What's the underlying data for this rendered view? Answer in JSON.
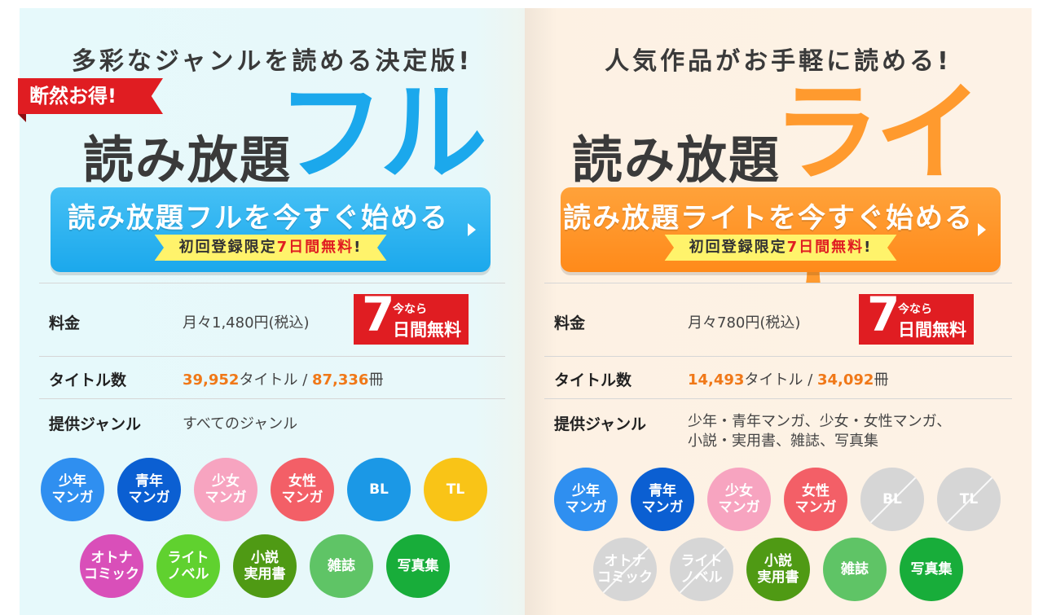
{
  "colors": {
    "accent_red": "#e01d22",
    "full_blue": "#1ba8ec",
    "lite_orange": "#ff8a1a",
    "number_orange": "#f07818",
    "cta_sub_yellow": "#fff36b"
  },
  "full": {
    "tagline": "多彩なジャンルを読める決定版!",
    "badge": "断然お得!",
    "title_main": "読み放題",
    "title_accent": "フル",
    "cta": {
      "label": "読み放題フルを今すぐ始める",
      "sub_prefix": "初回登録限定",
      "sub_highlight": "7日間無料",
      "sub_suffix": "!",
      "arrow_icon": "triangle-right-icon"
    },
    "price": {
      "label": "料金",
      "value": "月々1,480円(税込)",
      "free_badge": {
        "big": "7",
        "small1": "今なら",
        "small2": "日間無料"
      }
    },
    "titles": {
      "label": "タイトル数",
      "count": "39,952",
      "count_unit": "タイトル / ",
      "volumes": "87,336",
      "volumes_unit": "冊"
    },
    "genres": {
      "label": "提供ジャンル",
      "value": "すべてのジャンル"
    },
    "genre_circles": [
      {
        "l1": "少年",
        "l2": "マンガ",
        "color": "#2f8ff0",
        "available": true
      },
      {
        "l1": "青年",
        "l2": "マンガ",
        "color": "#0b5fd2",
        "available": true
      },
      {
        "l1": "少女",
        "l2": "マンガ",
        "color": "#f7a4c0",
        "available": true
      },
      {
        "l1": "女性",
        "l2": "マンガ",
        "color": "#f35f67",
        "available": true
      },
      {
        "l1": "BL",
        "l2": "",
        "color": "#1b98e6",
        "available": true
      },
      {
        "l1": "TL",
        "l2": "",
        "color": "#f9c417",
        "available": true
      },
      {
        "l1": "オトナ",
        "l2": "コミック",
        "color": "#d94fb9",
        "available": true
      },
      {
        "l1": "ライト",
        "l2": "ノベル",
        "color": "#60d12f",
        "available": true
      },
      {
        "l1": "小説",
        "l2": "実用書",
        "color": "#4f9a14",
        "available": true
      },
      {
        "l1": "雑誌",
        "l2": "",
        "color": "#5fc466",
        "available": true
      },
      {
        "l1": "写真集",
        "l2": "",
        "color": "#18ad3a",
        "available": true
      }
    ]
  },
  "lite": {
    "tagline": "人気作品がお手軽に読める!",
    "title_main": "読み放題",
    "title_accent": "ライト",
    "cta": {
      "label": "読み放題ライトを今すぐ始める",
      "sub_prefix": "初回登録限定",
      "sub_highlight": "7日間無料",
      "sub_suffix": "!",
      "arrow_icon": "triangle-right-icon"
    },
    "price": {
      "label": "料金",
      "value": "月々780円(税込)",
      "free_badge": {
        "big": "7",
        "small1": "今なら",
        "small2": "日間無料"
      }
    },
    "titles": {
      "label": "タイトル数",
      "count": "14,493",
      "count_unit": "タイトル / ",
      "volumes": "34,092",
      "volumes_unit": "冊"
    },
    "genres": {
      "label": "提供ジャンル",
      "value_line1": "少年・青年マンガ、少女・女性マンガ、",
      "value_line2": "小説・実用書、雑誌、写真集"
    },
    "genre_circles": [
      {
        "l1": "少年",
        "l2": "マンガ",
        "color": "#2f8ff0",
        "available": true
      },
      {
        "l1": "青年",
        "l2": "マンガ",
        "color": "#0b5fd2",
        "available": true
      },
      {
        "l1": "少女",
        "l2": "マンガ",
        "color": "#f7a4c0",
        "available": true
      },
      {
        "l1": "女性",
        "l2": "マンガ",
        "color": "#f35f67",
        "available": true
      },
      {
        "l1": "BL",
        "l2": "",
        "color": "#d6d6d6",
        "available": false
      },
      {
        "l1": "TL",
        "l2": "",
        "color": "#d6d6d6",
        "available": false
      },
      {
        "l1": "オトナ",
        "l2": "コミック",
        "color": "#d6d6d6",
        "available": false
      },
      {
        "l1": "ライト",
        "l2": "ノベル",
        "color": "#d6d6d6",
        "available": false
      },
      {
        "l1": "小説",
        "l2": "実用書",
        "color": "#4f9a14",
        "available": true
      },
      {
        "l1": "雑誌",
        "l2": "",
        "color": "#5fc466",
        "available": true
      },
      {
        "l1": "写真集",
        "l2": "",
        "color": "#18ad3a",
        "available": true
      }
    ]
  }
}
